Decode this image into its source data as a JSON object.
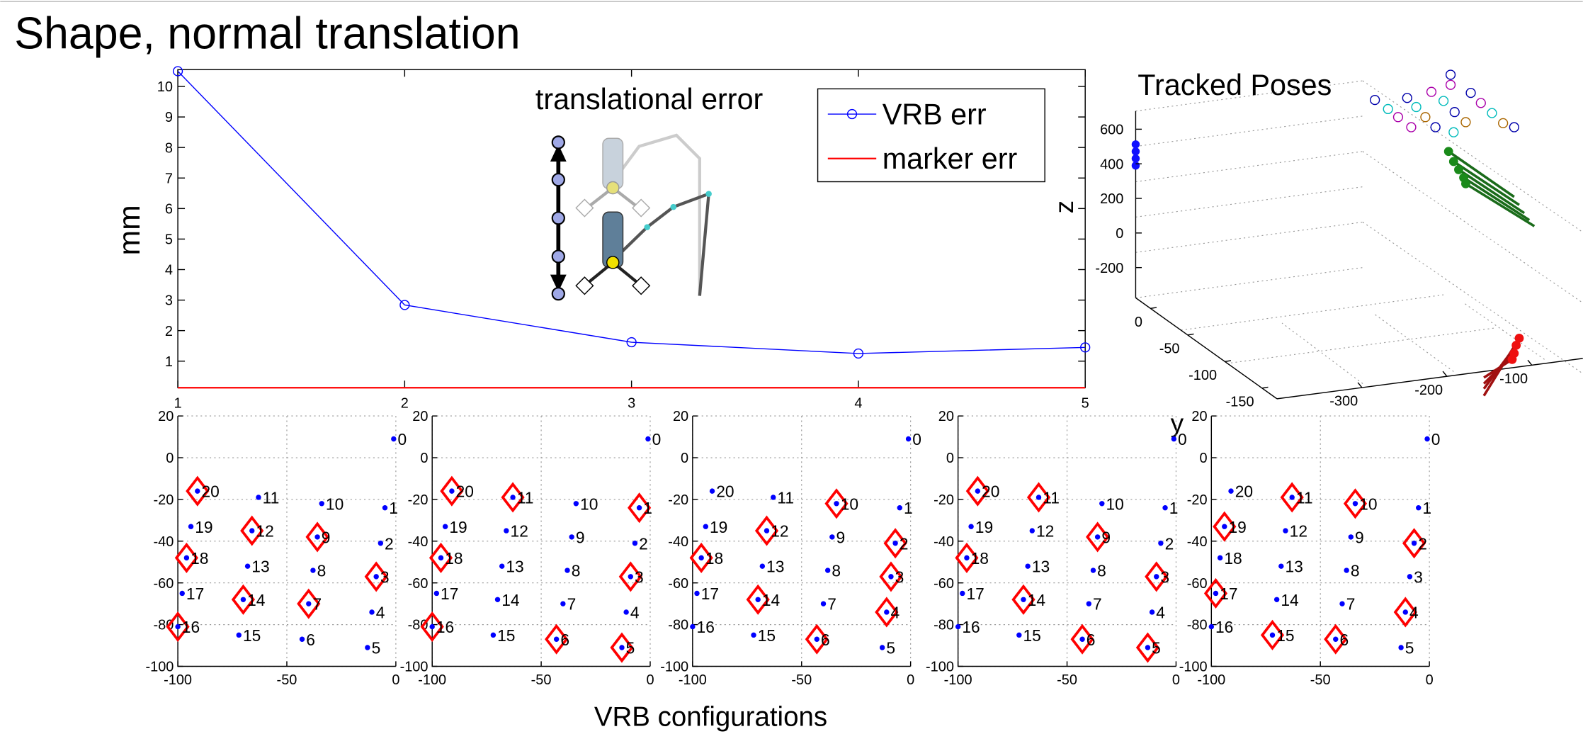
{
  "slide_title": "Shape, normal translation",
  "xlabel": "VRB configurations",
  "chart_data": [
    {
      "type": "line",
      "title": "translational error",
      "ylabel": "mm",
      "x": [
        1,
        2,
        3,
        4,
        5
      ],
      "xlim": [
        1,
        5
      ],
      "xticks": [
        1,
        2,
        3,
        4,
        5
      ],
      "ylim": [
        0.13,
        10.55
      ],
      "yticks": [
        1,
        2,
        3,
        4,
        5,
        6,
        7,
        8,
        9,
        10
      ],
      "legend": "upper right",
      "series": [
        {
          "name": "VRB err",
          "color": "#0000ff",
          "marker": "circle",
          "values": [
            10.5,
            2.84,
            1.62,
            1.25,
            1.45
          ]
        },
        {
          "name": "marker err",
          "color": "#ff0000",
          "values": [
            0.13,
            0.13,
            0.13,
            0.13,
            0.13
          ]
        }
      ]
    },
    {
      "type": "scatter3d",
      "title": "Tracked Poses",
      "zlabel": "z",
      "ylabel": "y",
      "zlim": [
        -375,
        705
      ],
      "zticks": [
        600,
        400,
        200,
        0,
        -200
      ],
      "xlim": [
        20,
        -170
      ],
      "xticks": [
        0,
        -50,
        -100,
        -150
      ],
      "ylim": [
        -400,
        -40
      ],
      "yticks": [
        -300,
        -200,
        -100
      ]
    },
    {
      "type": "scatter",
      "color": "#0000ff",
      "highlight_color": "#ff0000",
      "grid": true,
      "xlim": [
        -100,
        0
      ],
      "ylim": [
        -100,
        20
      ],
      "xticks": [
        -100,
        -50,
        0
      ],
      "yticks": [
        20,
        0,
        -20,
        -40,
        -60,
        -80,
        -100
      ],
      "x": [
        -1,
        -5,
        -7,
        -9,
        -11,
        -13,
        -43,
        -40,
        -38,
        -36,
        -34,
        -63,
        -66,
        -68,
        -70,
        -72,
        -100,
        -98,
        -96,
        -94,
        -91
      ],
      "y": [
        9,
        -24,
        -41,
        -57,
        -74,
        -91,
        -87,
        -70,
        -54,
        -38,
        -22,
        -19,
        -35,
        -52,
        -68,
        -85,
        -81,
        -65,
        -48,
        -33,
        -16
      ],
      "labels": [
        0,
        1,
        2,
        3,
        4,
        5,
        6,
        7,
        8,
        9,
        10,
        11,
        12,
        13,
        14,
        15,
        16,
        17,
        18,
        19,
        20
      ],
      "highlighted": [
        3,
        7,
        9,
        12,
        14,
        16,
        18,
        20
      ]
    },
    {
      "type": "scatter",
      "color": "#0000ff",
      "highlight_color": "#ff0000",
      "grid": true,
      "xlim": [
        -100,
        0
      ],
      "ylim": [
        -100,
        20
      ],
      "xticks": [
        -100,
        -50,
        0
      ],
      "yticks": [
        20,
        0,
        -20,
        -40,
        -60,
        -80,
        -100
      ],
      "x": [
        -1,
        -5,
        -7,
        -9,
        -11,
        -13,
        -43,
        -40,
        -38,
        -36,
        -34,
        -63,
        -66,
        -68,
        -70,
        -72,
        -100,
        -98,
        -96,
        -94,
        -91
      ],
      "y": [
        9,
        -24,
        -41,
        -57,
        -74,
        -91,
        -87,
        -70,
        -54,
        -38,
        -22,
        -19,
        -35,
        -52,
        -68,
        -85,
        -81,
        -65,
        -48,
        -33,
        -16
      ],
      "labels": [
        0,
        1,
        2,
        3,
        4,
        5,
        6,
        7,
        8,
        9,
        10,
        11,
        12,
        13,
        14,
        15,
        16,
        17,
        18,
        19,
        20
      ],
      "highlighted": [
        1,
        3,
        5,
        6,
        11,
        16,
        18,
        20
      ]
    },
    {
      "type": "scatter",
      "color": "#0000ff",
      "highlight_color": "#ff0000",
      "grid": true,
      "xlim": [
        -100,
        0
      ],
      "ylim": [
        -100,
        20
      ],
      "xticks": [
        -100,
        -50,
        0
      ],
      "yticks": [
        20,
        0,
        -20,
        -40,
        -60,
        -80,
        -100
      ],
      "x": [
        -1,
        -5,
        -7,
        -9,
        -11,
        -13,
        -43,
        -40,
        -38,
        -36,
        -34,
        -63,
        -66,
        -68,
        -70,
        -72,
        -100,
        -98,
        -96,
        -94,
        -91
      ],
      "y": [
        9,
        -24,
        -41,
        -57,
        -74,
        -91,
        -87,
        -70,
        -54,
        -38,
        -22,
        -19,
        -35,
        -52,
        -68,
        -85,
        -81,
        -65,
        -48,
        -33,
        -16
      ],
      "labels": [
        0,
        1,
        2,
        3,
        4,
        5,
        6,
        7,
        8,
        9,
        10,
        11,
        12,
        13,
        14,
        15,
        16,
        17,
        18,
        19,
        20
      ],
      "highlighted": [
        2,
        3,
        4,
        6,
        10,
        12,
        14,
        18
      ]
    },
    {
      "type": "scatter",
      "color": "#0000ff",
      "highlight_color": "#ff0000",
      "grid": true,
      "xlim": [
        -100,
        0
      ],
      "ylim": [
        -100,
        20
      ],
      "xticks": [
        -100,
        -50,
        0
      ],
      "yticks": [
        20,
        0,
        -20,
        -40,
        -60,
        -80,
        -100
      ],
      "x": [
        -1,
        -5,
        -7,
        -9,
        -11,
        -13,
        -43,
        -40,
        -38,
        -36,
        -34,
        -63,
        -66,
        -68,
        -70,
        -72,
        -100,
        -98,
        -96,
        -94,
        -91
      ],
      "y": [
        9,
        -24,
        -41,
        -57,
        -74,
        -91,
        -87,
        -70,
        -54,
        -38,
        -22,
        -19,
        -35,
        -52,
        -68,
        -85,
        -81,
        -65,
        -48,
        -33,
        -16
      ],
      "labels": [
        0,
        1,
        2,
        3,
        4,
        5,
        6,
        7,
        8,
        9,
        10,
        11,
        12,
        13,
        14,
        15,
        16,
        17,
        18,
        19,
        20
      ],
      "highlighted": [
        3,
        5,
        6,
        9,
        11,
        14,
        18,
        20
      ]
    },
    {
      "type": "scatter",
      "color": "#0000ff",
      "highlight_color": "#ff0000",
      "grid": true,
      "xlim": [
        -100,
        0
      ],
      "ylim": [
        -100,
        20
      ],
      "xticks": [
        -100,
        -50,
        0
      ],
      "yticks": [
        20,
        0,
        -20,
        -40,
        -60,
        -80,
        -100
      ],
      "x": [
        -1,
        -5,
        -7,
        -9,
        -11,
        -13,
        -43,
        -40,
        -38,
        -36,
        -34,
        -63,
        -66,
        -68,
        -70,
        -72,
        -100,
        -98,
        -96,
        -94,
        -91
      ],
      "y": [
        9,
        -24,
        -41,
        -57,
        -74,
        -91,
        -87,
        -70,
        -54,
        -38,
        -22,
        -19,
        -35,
        -52,
        -68,
        -85,
        -81,
        -65,
        -48,
        -33,
        -16
      ],
      "labels": [
        0,
        1,
        2,
        3,
        4,
        5,
        6,
        7,
        8,
        9,
        10,
        11,
        12,
        13,
        14,
        15,
        16,
        17,
        18,
        19,
        20
      ],
      "highlighted": [
        2,
        4,
        6,
        10,
        11,
        15,
        17,
        19
      ]
    }
  ]
}
